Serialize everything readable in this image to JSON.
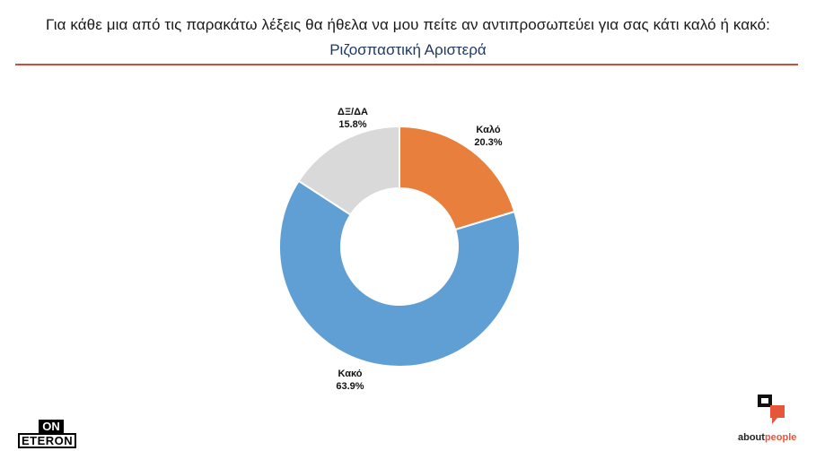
{
  "header": {
    "question": "Για κάθε μια από τις παρακάτω λέξεις θα ήθελα να μου πείτε αν αντιπροσωπεύει για σας κάτι καλό ή κακό:",
    "subtitle": "Ριζοσπαστική Αριστερά",
    "rule_color": "#c8503a"
  },
  "chart_data": {
    "type": "pie",
    "variant": "donut",
    "start_angle_deg": 0,
    "direction": "clockwise",
    "slices": [
      {
        "label": "Καλό",
        "value": 20.3,
        "display": "20.3%",
        "color": "#e97f3d"
      },
      {
        "label": "Κακό",
        "value": 63.9,
        "display": "63.9%",
        "color": "#5f9fd4"
      },
      {
        "label": "ΔΞ/ΔΑ",
        "value": 15.8,
        "display": "15.8%",
        "color": "#d9d9d9"
      }
    ]
  },
  "footer": {
    "left_logo": {
      "line1": "ON",
      "line2": "ETERON"
    },
    "right_logo": {
      "word_a": "about",
      "word_b": "people",
      "accent": "#e8563a"
    }
  }
}
